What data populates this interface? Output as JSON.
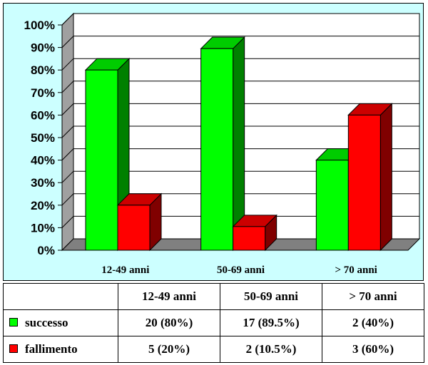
{
  "chart_data": {
    "type": "bar",
    "categories": [
      "12-49 anni",
      "50-69 anni",
      "> 70 anni"
    ],
    "series": [
      {
        "name": "successo",
        "color": "#00ff00",
        "side_color": "#008000",
        "top_color": "#00cc00",
        "values": [
          80,
          89.5,
          40
        ]
      },
      {
        "name": "fallimento",
        "color": "#ff0000",
        "side_color": "#800000",
        "top_color": "#cc0000",
        "values": [
          20,
          10.5,
          60
        ]
      }
    ],
    "ylim": [
      0,
      100
    ],
    "yticks": [
      "0%",
      "10%",
      "20%",
      "30%",
      "40%",
      "50%",
      "60%",
      "70%",
      "80%",
      "90%",
      "100%"
    ],
    "grid": true,
    "title": "",
    "xlabel": "",
    "ylabel": "",
    "plot_bg": "#ffffff",
    "panel_bg": "#ccffff"
  },
  "table": {
    "header": [
      "12-49 anni",
      "50-69 anni",
      "> 70 anni"
    ],
    "rows": [
      {
        "label": "successo",
        "color": "#00ff00",
        "cells": [
          "20 (80%)",
          "17 (89.5%)",
          "2 (40%)"
        ]
      },
      {
        "label": "fallimento",
        "color": "#ff0000",
        "cells": [
          "5 (20%)",
          "2 (10.5%)",
          "3 (60%)"
        ]
      }
    ]
  }
}
